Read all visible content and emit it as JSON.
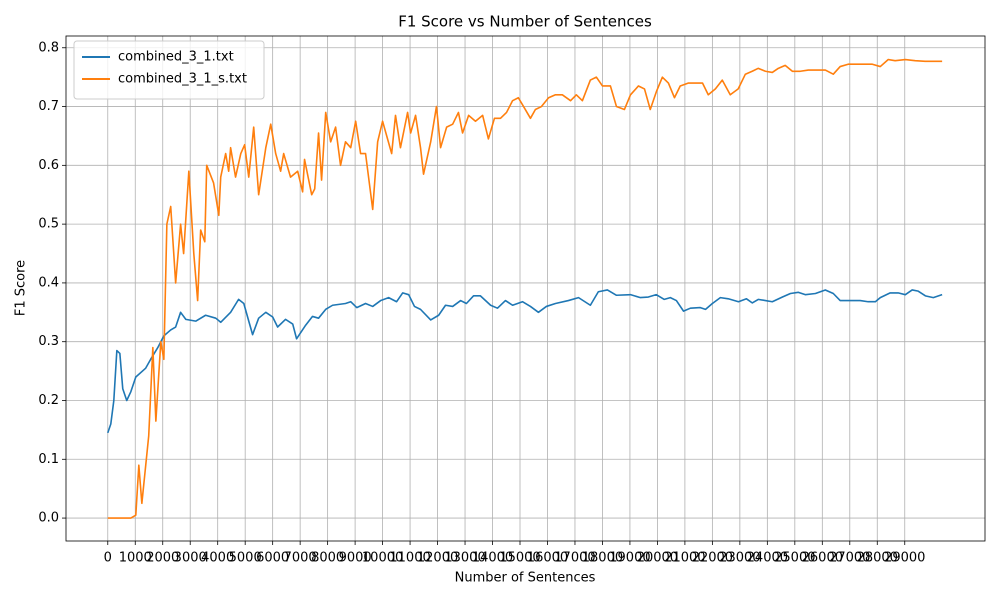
{
  "chart_data": {
    "type": "line",
    "title": "F1 Score vs Number of Sentences",
    "x_label": "Number of Sentences",
    "y_label": "F1 Score",
    "grid": true,
    "legend": "upper left",
    "xlim": [
      -1520,
      31920
    ],
    "ylim": [
      -0.039,
      0.82
    ],
    "xticks": [
      0,
      1000,
      2000,
      3000,
      4000,
      5000,
      6000,
      7000,
      8000,
      9000,
      10000,
      11000,
      12000,
      13000,
      14000,
      15000,
      16000,
      17000,
      18000,
      19000,
      20000,
      21000,
      22000,
      23000,
      24000,
      25000,
      26000,
      27000,
      28000,
      29000
    ],
    "yticks": [
      {
        "value": 0,
        "label": "0.0"
      },
      0.1,
      0.2,
      0.3,
      0.4,
      0.5,
      0.6,
      0.7,
      0.8
    ],
    "series": [
      {
        "name": "combined_3_1.txt",
        "color": "#1f77b4",
        "x": [
          0,
          110,
          220,
          330,
          440,
          545,
          690,
          840,
          1020,
          1380,
          1560,
          1820,
          2040,
          2290,
          2470,
          2650,
          2840,
          3200,
          3560,
          3930,
          4110,
          4470,
          4760,
          4950,
          5130,
          5270,
          5490,
          5750,
          6000,
          6180,
          6470,
          6730,
          6870,
          7200,
          7450,
          7670,
          7930,
          8180,
          8650,
          8840,
          9060,
          9380,
          9640,
          9930,
          10220,
          10510,
          10730,
          10950,
          11160,
          11380,
          11750,
          12040,
          12290,
          12550,
          12840,
          13050,
          13310,
          13560,
          13930,
          14180,
          14470,
          14730,
          15090,
          15380,
          15670,
          15960,
          16290,
          16760,
          17130,
          17560,
          17850,
          18180,
          18510,
          19020,
          19380,
          19670,
          19960,
          20250,
          20470,
          20690,
          20950,
          21200,
          21560,
          21750,
          22000,
          22290,
          22580,
          22950,
          23240,
          23450,
          23670,
          23930,
          24180,
          24550,
          24840,
          25130,
          25380,
          25750,
          26110,
          26400,
          26650,
          27020,
          27380,
          27670,
          27930,
          28110,
          28470,
          28760,
          29020,
          29270,
          29490,
          29750,
          30040,
          30360
        ],
        "values": [
          0.145,
          0.16,
          0.2,
          0.285,
          0.28,
          0.22,
          0.2,
          0.215,
          0.24,
          0.255,
          0.27,
          0.29,
          0.31,
          0.32,
          0.325,
          0.35,
          0.338,
          0.335,
          0.345,
          0.34,
          0.333,
          0.35,
          0.372,
          0.365,
          0.335,
          0.312,
          0.34,
          0.35,
          0.342,
          0.325,
          0.338,
          0.33,
          0.305,
          0.328,
          0.343,
          0.34,
          0.355,
          0.362,
          0.365,
          0.368,
          0.358,
          0.365,
          0.36,
          0.37,
          0.375,
          0.368,
          0.383,
          0.38,
          0.36,
          0.355,
          0.337,
          0.345,
          0.362,
          0.36,
          0.37,
          0.365,
          0.378,
          0.378,
          0.362,
          0.357,
          0.37,
          0.362,
          0.368,
          0.36,
          0.35,
          0.36,
          0.365,
          0.37,
          0.375,
          0.362,
          0.385,
          0.388,
          0.379,
          0.38,
          0.375,
          0.376,
          0.38,
          0.372,
          0.375,
          0.37,
          0.352,
          0.357,
          0.358,
          0.355,
          0.365,
          0.375,
          0.373,
          0.368,
          0.373,
          0.366,
          0.372,
          0.37,
          0.368,
          0.376,
          0.382,
          0.384,
          0.38,
          0.382,
          0.388,
          0.382,
          0.37,
          0.37,
          0.37,
          0.368,
          0.368,
          0.375,
          0.383,
          0.383,
          0.38,
          0.388,
          0.386,
          0.378,
          0.375,
          0.38
        ]
      },
      {
        "name": "combined_3_1_s.txt",
        "color": "#ff7f0e",
        "x": [
          0,
          110,
          220,
          330,
          440,
          545,
          690,
          840,
          1020,
          1130,
          1240,
          1490,
          1640,
          1750,
          1930,
          2040,
          2150,
          2290,
          2470,
          2650,
          2760,
          2950,
          3130,
          3270,
          3380,
          3530,
          3600,
          3850,
          4040,
          4110,
          4290,
          4400,
          4470,
          4650,
          4840,
          4980,
          5130,
          5310,
          5490,
          5750,
          5930,
          6110,
          6290,
          6400,
          6650,
          6910,
          7090,
          7160,
          7420,
          7530,
          7670,
          7780,
          7930,
          8110,
          8290,
          8470,
          8650,
          8840,
          9020,
          9200,
          9380,
          9640,
          9820,
          10000,
          10180,
          10330,
          10470,
          10650,
          10910,
          11020,
          11200,
          11380,
          11490,
          11750,
          11960,
          12110,
          12330,
          12550,
          12760,
          12910,
          13130,
          13380,
          13640,
          13850,
          14070,
          14290,
          14510,
          14730,
          14940,
          15130,
          15380,
          15560,
          15780,
          16040,
          16290,
          16540,
          16840,
          17050,
          17270,
          17560,
          17780,
          18000,
          18290,
          18510,
          18800,
          19020,
          19310,
          19530,
          19740,
          19960,
          20180,
          20400,
          20620,
          20830,
          21130,
          21380,
          21640,
          21850,
          22110,
          22360,
          22650,
          22940,
          23200,
          23450,
          23670,
          23930,
          24180,
          24400,
          24650,
          24910,
          25200,
          25490,
          25740,
          26110,
          26400,
          26650,
          26940,
          27200,
          27450,
          27820,
          28110,
          28400,
          28650,
          29020,
          29380,
          29740,
          30360
        ],
        "values": [
          0,
          0,
          0,
          0,
          0,
          0,
          0,
          0,
          0.005,
          0.09,
          0.025,
          0.14,
          0.29,
          0.165,
          0.3,
          0.27,
          0.5,
          0.53,
          0.4,
          0.5,
          0.45,
          0.59,
          0.45,
          0.37,
          0.49,
          0.47,
          0.6,
          0.57,
          0.515,
          0.58,
          0.62,
          0.59,
          0.63,
          0.58,
          0.62,
          0.635,
          0.58,
          0.665,
          0.55,
          0.63,
          0.67,
          0.62,
          0.59,
          0.62,
          0.58,
          0.59,
          0.555,
          0.61,
          0.55,
          0.56,
          0.655,
          0.575,
          0.69,
          0.64,
          0.665,
          0.6,
          0.64,
          0.63,
          0.675,
          0.62,
          0.62,
          0.525,
          0.64,
          0.675,
          0.645,
          0.62,
          0.685,
          0.63,
          0.69,
          0.655,
          0.685,
          0.63,
          0.585,
          0.64,
          0.7,
          0.63,
          0.665,
          0.67,
          0.69,
          0.655,
          0.685,
          0.675,
          0.685,
          0.645,
          0.68,
          0.68,
          0.69,
          0.71,
          0.715,
          0.7,
          0.68,
          0.695,
          0.7,
          0.715,
          0.72,
          0.72,
          0.71,
          0.72,
          0.71,
          0.745,
          0.75,
          0.735,
          0.735,
          0.7,
          0.695,
          0.72,
          0.735,
          0.73,
          0.695,
          0.725,
          0.75,
          0.74,
          0.715,
          0.735,
          0.74,
          0.74,
          0.74,
          0.72,
          0.73,
          0.745,
          0.72,
          0.73,
          0.755,
          0.76,
          0.765,
          0.76,
          0.758,
          0.765,
          0.77,
          0.76,
          0.76,
          0.762,
          0.762,
          0.762,
          0.755,
          0.768,
          0.772,
          0.772,
          0.772,
          0.772,
          0.768,
          0.78,
          0.778,
          0.78,
          0.778,
          0.777,
          0.777
        ]
      }
    ]
  }
}
